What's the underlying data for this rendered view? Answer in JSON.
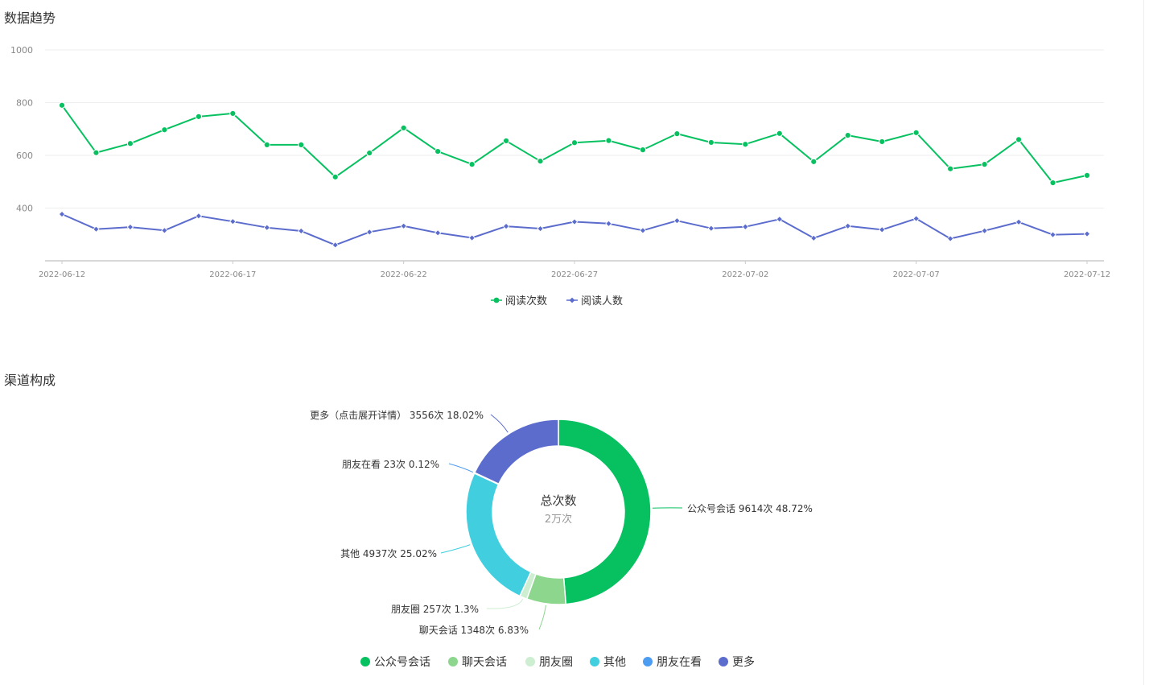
{
  "sections": {
    "trend_title": "数据趋势",
    "channel_title": "渠道构成"
  },
  "colors": {
    "reads": "#07c160",
    "readers": "#5b6ccd",
    "axis": "#cccccc",
    "grid": "#eeeeee",
    "tick_text": "#888888",
    "label_text": "#333333"
  },
  "chart_data": [
    {
      "type": "line",
      "title": "数据趋势",
      "x": [
        "2022-06-12",
        "2022-06-13",
        "2022-06-14",
        "2022-06-15",
        "2022-06-16",
        "2022-06-17",
        "2022-06-18",
        "2022-06-19",
        "2022-06-20",
        "2022-06-21",
        "2022-06-22",
        "2022-06-23",
        "2022-06-24",
        "2022-06-25",
        "2022-06-26",
        "2022-06-27",
        "2022-06-28",
        "2022-06-29",
        "2022-06-30",
        "2022-07-01",
        "2022-07-02",
        "2022-07-03",
        "2022-07-04",
        "2022-07-05",
        "2022-07-06",
        "2022-07-07",
        "2022-07-08",
        "2022-07-09",
        "2022-07-10",
        "2022-07-11",
        "2022-07-12"
      ],
      "x_tick_labels": [
        "2022-06-12",
        "2022-06-17",
        "2022-06-22",
        "2022-06-27",
        "2022-07-02",
        "2022-07-07",
        "2022-07-12"
      ],
      "y_ticks": [
        1000,
        800,
        600,
        400
      ],
      "ylim": [
        200,
        1000
      ],
      "grid": true,
      "legend_position": "bottom-center",
      "series": [
        {
          "name": "阅读次数",
          "marker": "circle",
          "values": [
            790,
            610,
            645,
            697,
            747,
            759,
            640,
            640,
            518,
            609,
            704,
            615,
            566,
            655,
            578,
            648,
            656,
            621,
            682,
            649,
            642,
            683,
            576,
            676,
            652,
            686,
            549,
            566,
            660,
            496,
            524
          ]
        },
        {
          "name": "阅读人数",
          "marker": "diamond",
          "values": [
            377,
            320,
            328,
            315,
            370,
            349,
            326,
            313,
            260,
            309,
            332,
            306,
            287,
            331,
            322,
            348,
            341,
            315,
            352,
            323,
            329,
            358,
            286,
            332,
            318,
            360,
            284,
            314,
            347,
            299,
            302
          ]
        }
      ]
    },
    {
      "type": "pie",
      "title": "渠道构成",
      "center_label": "总次数",
      "center_value": "2万次",
      "legend_position": "bottom-center",
      "slices": [
        {
          "name": "公众号会话",
          "count": 9614,
          "percent": 48.72,
          "color": "#07c160",
          "label": "公众号会话 9614次 48.72%"
        },
        {
          "name": "聊天会话",
          "count": 1348,
          "percent": 6.83,
          "color": "#8cd68e",
          "label": "聊天会话 1348次 6.83%"
        },
        {
          "name": "朋友圈",
          "count": 257,
          "percent": 1.3,
          "color": "#cdeed1",
          "label": "朋友圈 257次 1.3%"
        },
        {
          "name": "其他",
          "count": 4937,
          "percent": 25.02,
          "color": "#41cfe0",
          "label": "其他 4937次 25.02%"
        },
        {
          "name": "朋友在看",
          "count": 23,
          "percent": 0.12,
          "color": "#4c9df1",
          "label": "朋友在看 23次 0.12%"
        },
        {
          "name": "更多",
          "count": 3556,
          "percent": 18.02,
          "color": "#5b6ccd",
          "label": "更多（点击展开详情） 3556次 18.02%"
        }
      ]
    }
  ]
}
